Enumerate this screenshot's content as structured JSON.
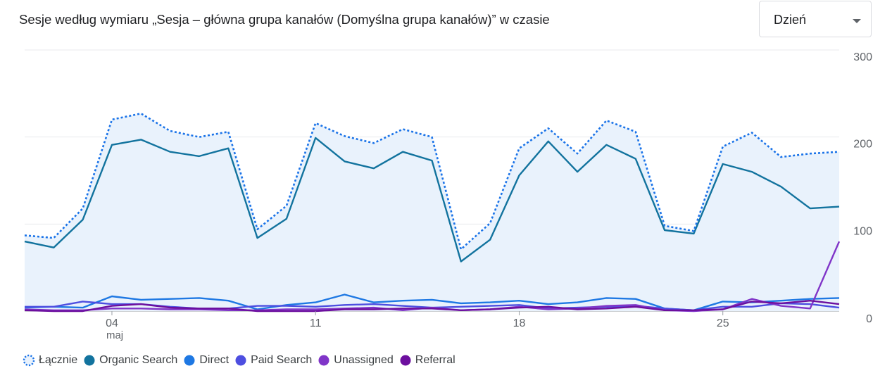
{
  "title": "Sesje według wymiaru „Sesja – główna grupa kanałów (Domyślna grupa kanałów)” w czasie",
  "granularity": {
    "selected": "Dzień"
  },
  "colors": {
    "total": "#1a73e8",
    "organic": "#12739e",
    "direct": "#1e78e3",
    "paid": "#4d4ee0",
    "unassigned": "#8035c8",
    "referral": "#6c0f9e",
    "fill": "#e9f2fc",
    "grid": "#e8eaed"
  },
  "chart_data": {
    "type": "line",
    "x": [
      "05-01",
      "05-02",
      "05-03",
      "05-04",
      "05-05",
      "05-06",
      "05-07",
      "05-08",
      "05-09",
      "05-10",
      "05-11",
      "05-12",
      "05-13",
      "05-14",
      "05-15",
      "05-16",
      "05-17",
      "05-18",
      "05-19",
      "05-20",
      "05-21",
      "05-22",
      "05-23",
      "05-24",
      "05-25",
      "05-26",
      "05-27",
      "05-28",
      "05-29"
    ],
    "x_ticks": [
      {
        "index": 3,
        "label": "04",
        "sublabel": "maj"
      },
      {
        "index": 10,
        "label": "11",
        "sublabel": ""
      },
      {
        "index": 17,
        "label": "18",
        "sublabel": ""
      },
      {
        "index": 24,
        "label": "25",
        "sublabel": ""
      }
    ],
    "ylim": [
      0,
      300
    ],
    "yticks": [
      0,
      100,
      200,
      300
    ],
    "grid": true,
    "legend_position": "bottom-left",
    "series": [
      {
        "name": "Łącznie",
        "key": "total",
        "dashed": true,
        "filled": true,
        "values": [
          87,
          84,
          118,
          220,
          227,
          207,
          200,
          206,
          94,
          121,
          216,
          201,
          193,
          209,
          200,
          71,
          101,
          187,
          210,
          181,
          219,
          206,
          98,
          92,
          189,
          205,
          177,
          181,
          183
        ]
      },
      {
        "name": "Organic Search",
        "key": "organic",
        "values": [
          80,
          73,
          105,
          191,
          197,
          183,
          178,
          187,
          84,
          106,
          199,
          172,
          164,
          183,
          173,
          57,
          82,
          156,
          195,
          160,
          191,
          175,
          93,
          89,
          169,
          160,
          143,
          118,
          120
        ]
      },
      {
        "name": "Direct",
        "key": "direct",
        "values": [
          4,
          5,
          4,
          17,
          13,
          14,
          15,
          12,
          2,
          7,
          10,
          19,
          10,
          12,
          13,
          9,
          10,
          12,
          8,
          10,
          15,
          14,
          3,
          1,
          11,
          10,
          12,
          14,
          15
        ]
      },
      {
        "name": "Paid Search",
        "key": "paid",
        "values": [
          5,
          5,
          11,
          8,
          8,
          5,
          3,
          3,
          6,
          6,
          5,
          7,
          8,
          6,
          4,
          5,
          6,
          7,
          3,
          4,
          5,
          6,
          3,
          1,
          5,
          5,
          9,
          8,
          4
        ]
      },
      {
        "name": "Unassigned",
        "key": "unassigned",
        "values": [
          2,
          1,
          1,
          3,
          3,
          2,
          2,
          1,
          1,
          2,
          2,
          3,
          4,
          1,
          4,
          1,
          2,
          5,
          2,
          3,
          6,
          7,
          1,
          0,
          2,
          14,
          6,
          3,
          80
        ]
      },
      {
        "name": "Referral",
        "key": "referral",
        "values": [
          1,
          0,
          0,
          6,
          8,
          4,
          3,
          3,
          0,
          0,
          0,
          2,
          2,
          3,
          3,
          1,
          2,
          4,
          5,
          2,
          3,
          5,
          1,
          1,
          2,
          11,
          9,
          12,
          8
        ]
      }
    ]
  }
}
